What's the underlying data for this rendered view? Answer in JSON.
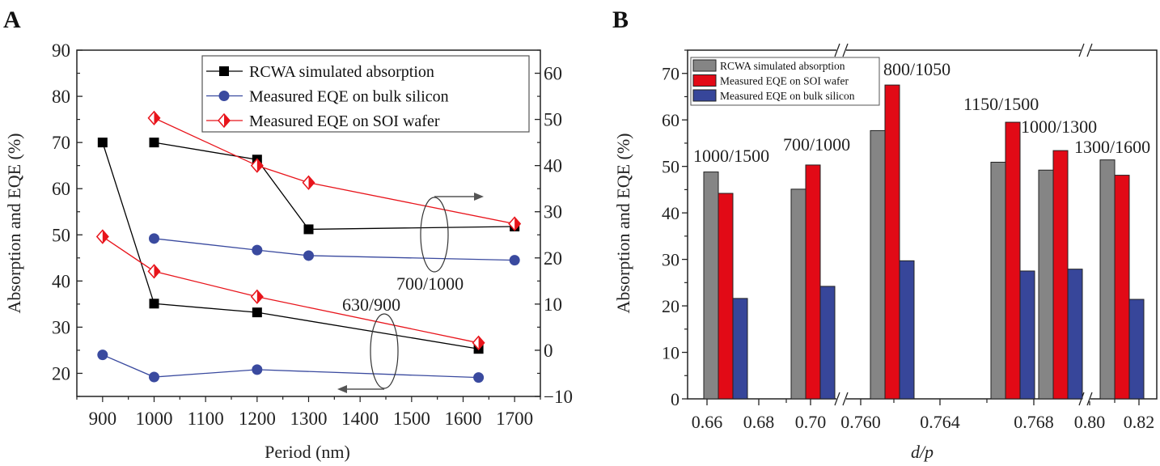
{
  "chart_data": [
    {
      "panel": "A",
      "type": "line",
      "xlabel": "Period (nm)",
      "ylabel": "Absorption and EQE (%)",
      "xlim": [
        850,
        1750
      ],
      "ylim_left": [
        15,
        90
      ],
      "ylim_right": [
        -10,
        65
      ],
      "x_ticks": [
        900,
        1000,
        1100,
        1200,
        1300,
        1400,
        1500,
        1600,
        1700
      ],
      "y_ticks_left": [
        20,
        30,
        40,
        50,
        60,
        70,
        80,
        90
      ],
      "y_ticks_right": [
        -10,
        0,
        10,
        20,
        30,
        40,
        50,
        60
      ],
      "grid": false,
      "legend_position": "top-right",
      "legend": [
        "RCWA simulated absorption",
        "Measured EQE on bulk silicon",
        "Measured EQE on SOI wafer"
      ],
      "colors": {
        "rcwa": "#000000",
        "bulk": "#3a4a9f",
        "soi": "#e8141b"
      },
      "annotations": [
        "700/1000",
        "630/900"
      ],
      "groups": [
        {
          "label": "700/1000",
          "axis": "right",
          "series": [
            {
              "name": "RCWA simulated absorption",
              "key": "rcwa",
              "x": [
                1000,
                1200,
                1300,
                1700
              ],
              "y": [
                45.0,
                41.3,
                26.2,
                26.8
              ]
            },
            {
              "name": "Measured EQE on bulk silicon",
              "key": "bulk",
              "x": [
                1000,
                1200,
                1300,
                1700
              ],
              "y": [
                24.2,
                21.7,
                20.5,
                19.5
              ]
            },
            {
              "name": "Measured EQE on SOI wafer",
              "key": "soi",
              "x": [
                1000,
                1200,
                1300,
                1700
              ],
              "y": [
                50.3,
                40.0,
                36.3,
                27.4
              ]
            }
          ]
        },
        {
          "label": "630/900",
          "axis": "left",
          "series": [
            {
              "name": "RCWA simulated absorption",
              "key": "rcwa",
              "x": [
                900,
                1000,
                1200,
                1630
              ],
              "y": [
                70.0,
                35.1,
                33.2,
                25.3
              ]
            },
            {
              "name": "Measured EQE on bulk silicon",
              "key": "bulk",
              "x": [
                900,
                1000,
                1200,
                1630
              ],
              "y": [
                24.0,
                19.2,
                20.8,
                19.1
              ]
            },
            {
              "name": "Measured EQE on SOI wafer",
              "key": "soi",
              "x": [
                900,
                1000,
                1200,
                1630
              ],
              "y": [
                49.6,
                42.1,
                36.6,
                26.6
              ]
            }
          ]
        }
      ]
    },
    {
      "panel": "B",
      "type": "bar",
      "xlabel": "d/p",
      "ylabel": "Absorption and EQE (%)",
      "ylim": [
        0,
        75
      ],
      "y_ticks": [
        0,
        10,
        20,
        30,
        40,
        50,
        60,
        70
      ],
      "x_tick_labels": [
        "0.66",
        "0.68",
        "0.70",
        "0.760",
        "0.764",
        "0.768",
        "0.80",
        "0.82"
      ],
      "axis_breaks": true,
      "grid": false,
      "legend_position": "top-left",
      "legend": [
        "RCWA simulated absorption",
        "Measured EQE on SOI wafer",
        "Measured EQE on bulk silicon"
      ],
      "colors": {
        "rcwa": "#858585",
        "soi": "#e20a16",
        "bulk": "#37469a"
      },
      "categories": [
        "1000/1500",
        "700/1000",
        "800/1050",
        "1150/1500",
        "1000/1300",
        "1300/1600"
      ],
      "series": [
        {
          "name": "RCWA simulated absorption",
          "key": "rcwa",
          "values": [
            48.8,
            45.1,
            57.7,
            50.9,
            49.2,
            51.4
          ]
        },
        {
          "name": "Measured EQE on SOI wafer",
          "key": "soi",
          "values": [
            44.2,
            50.3,
            67.5,
            59.5,
            53.4,
            48.1
          ]
        },
        {
          "name": "Measured EQE on bulk silicon",
          "key": "bulk",
          "values": [
            21.6,
            24.2,
            29.7,
            27.5,
            27.9,
            21.4
          ]
        }
      ]
    }
  ]
}
